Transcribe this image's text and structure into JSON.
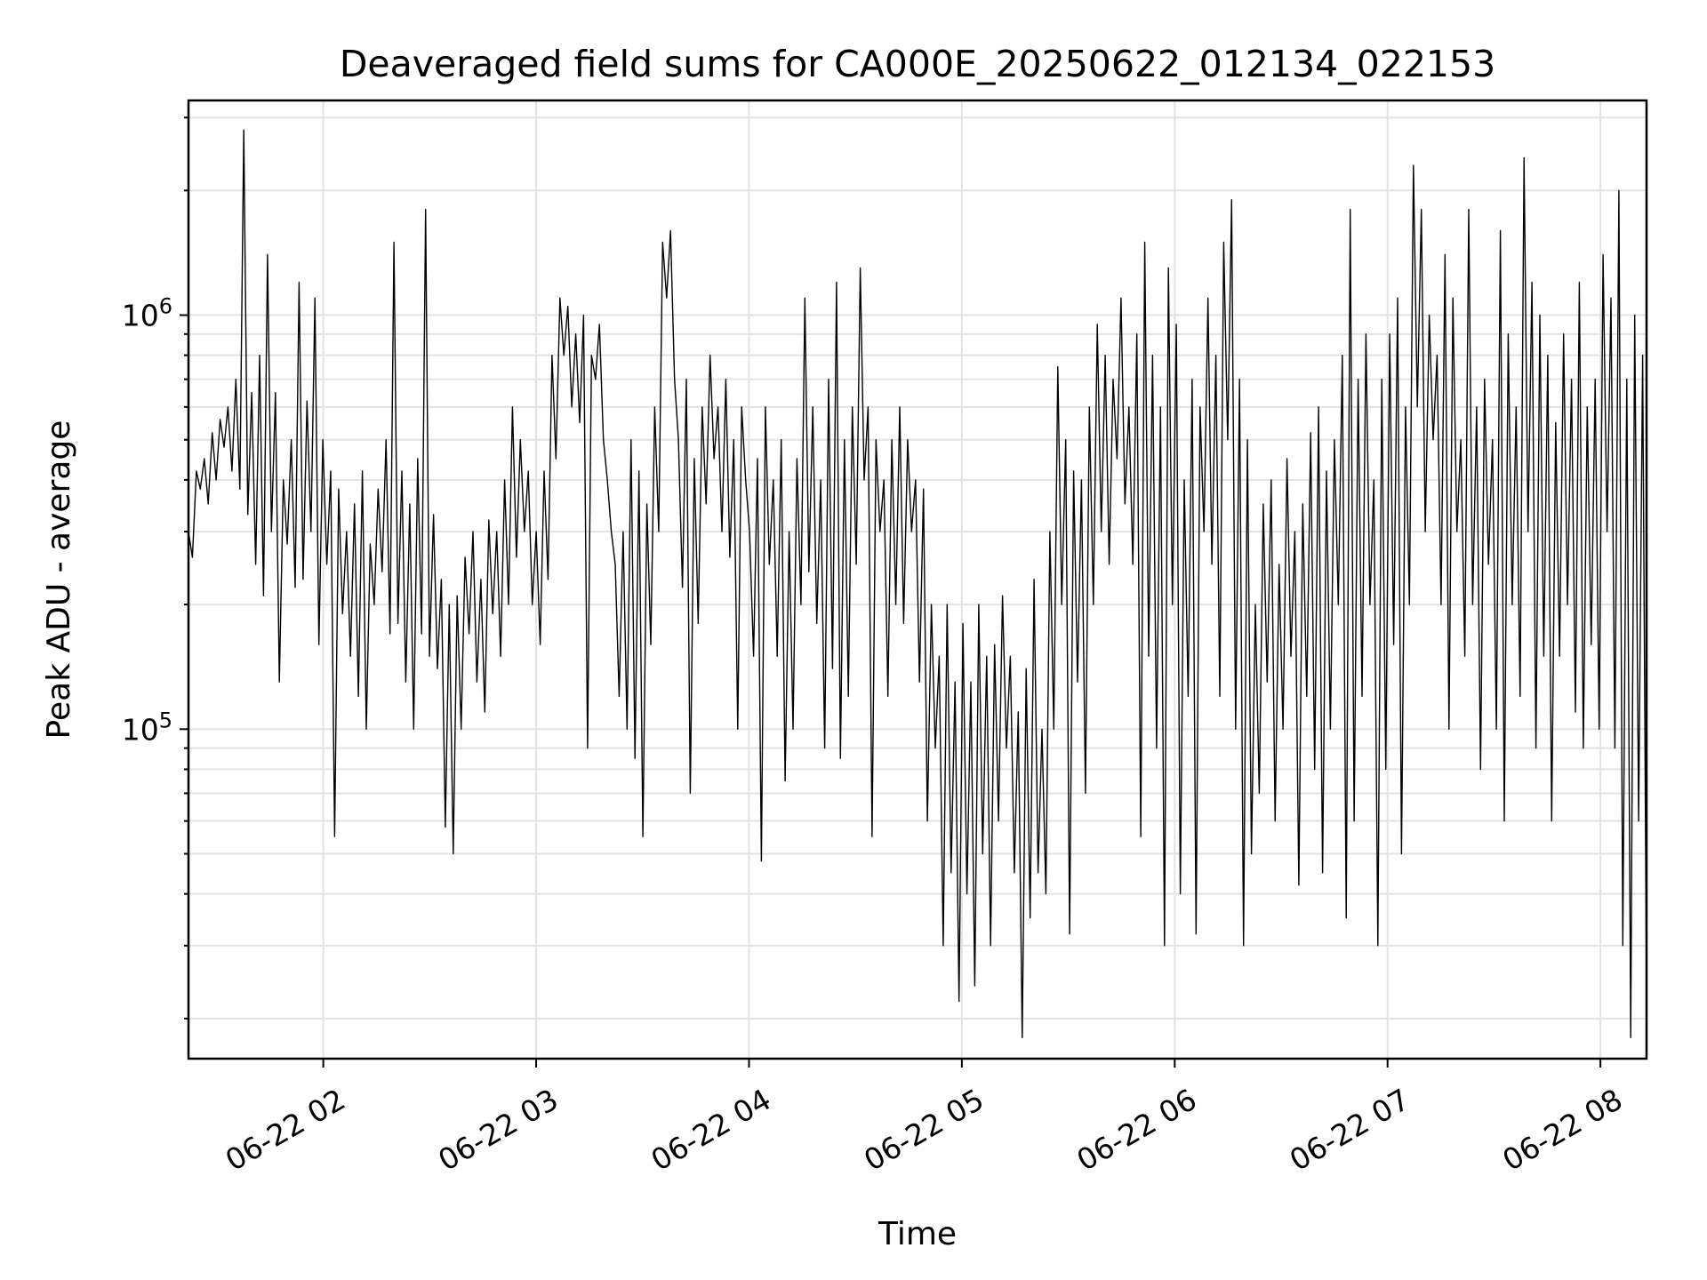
{
  "chart_data": {
    "type": "line",
    "title": "Deaveraged field sums for CA000E_20250622_012134_022153",
    "xlabel": "Time",
    "ylabel": "Peak ADU - average",
    "yscale": "log",
    "grid": true,
    "x_tick_labels": [
      "06-22 02",
      "06-22 03",
      "06-22 04",
      "06-22 05",
      "06-22 06",
      "06-22 07",
      "06-22 08"
    ],
    "x_ticks": [
      "2025-06-22 02:00",
      "2025-06-22 03:00",
      "2025-06-22 04:00",
      "2025-06-22 05:00",
      "2025-06-22 06:00",
      "2025-06-22 07:00",
      "2025-06-22 08:00"
    ],
    "xlim": [
      "2025-06-22 01:22",
      "2025-06-22 08:13"
    ],
    "y_tick_labels": [
      {
        "value": 100000,
        "base": "10",
        "exp": "5"
      },
      {
        "value": 1000000,
        "base": "10",
        "exp": "6"
      }
    ],
    "ylim": [
      16000,
      3300000
    ],
    "series": [
      {
        "color": "#000000",
        "x_start": "2025-06-22 01:22",
        "x_end": "2025-06-22 08:13",
        "values": [
          300000,
          260000,
          420000,
          380000,
          450000,
          350000,
          520000,
          400000,
          560000,
          480000,
          600000,
          420000,
          700000,
          380000,
          2800000,
          330000,
          650000,
          250000,
          800000,
          210000,
          1400000,
          300000,
          650000,
          130000,
          400000,
          280000,
          500000,
          220000,
          1200000,
          230000,
          620000,
          300000,
          1100000,
          160000,
          500000,
          250000,
          420000,
          55000,
          380000,
          190000,
          300000,
          150000,
          350000,
          120000,
          420000,
          100000,
          280000,
          200000,
          380000,
          240000,
          500000,
          170000,
          1500000,
          180000,
          420000,
          130000,
          350000,
          100000,
          450000,
          170000,
          1800000,
          150000,
          330000,
          140000,
          230000,
          58000,
          200000,
          50000,
          210000,
          100000,
          260000,
          170000,
          300000,
          130000,
          230000,
          110000,
          320000,
          190000,
          300000,
          150000,
          400000,
          200000,
          600000,
          260000,
          500000,
          300000,
          420000,
          200000,
          300000,
          160000,
          420000,
          230000,
          800000,
          450000,
          1100000,
          800000,
          1050000,
          600000,
          900000,
          550000,
          1000000,
          90000,
          800000,
          700000,
          950000,
          500000,
          400000,
          300000,
          250000,
          120000,
          300000,
          100000,
          500000,
          85000,
          420000,
          55000,
          350000,
          160000,
          600000,
          300000,
          1500000,
          1100000,
          1600000,
          700000,
          500000,
          220000,
          700000,
          70000,
          450000,
          180000,
          600000,
          350000,
          800000,
          450000,
          600000,
          300000,
          700000,
          260000,
          500000,
          100000,
          600000,
          400000,
          300000,
          150000,
          450000,
          48000,
          600000,
          250000,
          400000,
          150000,
          500000,
          75000,
          300000,
          100000,
          450000,
          200000,
          1100000,
          240000,
          600000,
          180000,
          400000,
          90000,
          700000,
          140000,
          1200000,
          85000,
          500000,
          120000,
          600000,
          250000,
          1300000,
          400000,
          600000,
          55000,
          500000,
          300000,
          400000,
          120000,
          500000,
          200000,
          600000,
          180000,
          500000,
          300000,
          400000,
          130000,
          380000,
          60000,
          200000,
          90000,
          150000,
          30000,
          200000,
          45000,
          130000,
          22000,
          180000,
          40000,
          130000,
          24000,
          200000,
          50000,
          150000,
          30000,
          160000,
          60000,
          210000,
          90000,
          150000,
          45000,
          110000,
          18000,
          140000,
          35000,
          230000,
          45000,
          100000,
          40000,
          300000,
          100000,
          750000,
          200000,
          500000,
          32000,
          420000,
          130000,
          400000,
          70000,
          600000,
          200000,
          950000,
          300000,
          800000,
          250000,
          700000,
          450000,
          1100000,
          350000,
          600000,
          250000,
          900000,
          55000,
          1500000,
          150000,
          800000,
          90000,
          600000,
          30000,
          1300000,
          200000,
          950000,
          40000,
          400000,
          120000,
          700000,
          32000,
          600000,
          300000,
          1100000,
          250000,
          800000,
          120000,
          1500000,
          500000,
          1900000,
          100000,
          700000,
          30000,
          500000,
          50000,
          200000,
          70000,
          350000,
          130000,
          400000,
          60000,
          250000,
          100000,
          450000,
          150000,
          300000,
          42000,
          350000,
          120000,
          520000,
          80000,
          600000,
          45000,
          420000,
          100000,
          500000,
          200000,
          800000,
          35000,
          1800000,
          60000,
          700000,
          120000,
          900000,
          200000,
          400000,
          30000,
          700000,
          80000,
          900000,
          160000,
          1100000,
          50000,
          600000,
          200000,
          2300000,
          600000,
          1800000,
          300000,
          1000000,
          500000,
          800000,
          200000,
          1400000,
          100000,
          1100000,
          300000,
          500000,
          150000,
          1800000,
          200000,
          600000,
          80000,
          700000,
          250000,
          500000,
          100000,
          1600000,
          60000,
          900000,
          200000,
          600000,
          120000,
          2400000,
          300000,
          1200000,
          90000,
          1000000,
          150000,
          800000,
          60000,
          550000,
          150000,
          900000,
          200000,
          700000,
          110000,
          1200000,
          90000,
          600000,
          160000,
          700000,
          100000,
          1400000,
          300000,
          1100000,
          90000,
          2000000,
          30000,
          700000,
          18000,
          1000000,
          60000,
          800000,
          22000
        ]
      }
    ]
  }
}
